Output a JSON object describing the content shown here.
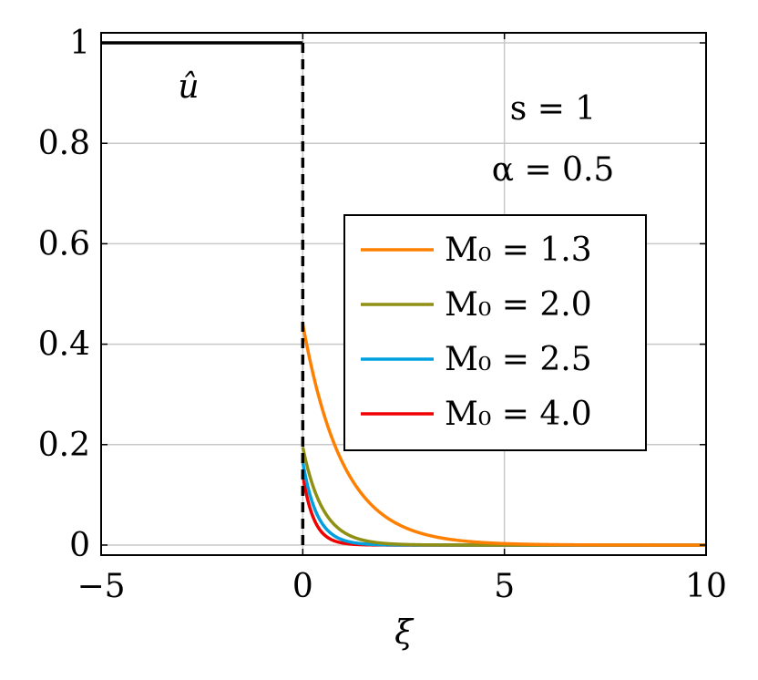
{
  "chart_data": {
    "type": "line",
    "xlabel": "ξ",
    "ylabel": "",
    "xlim": [
      -5,
      10
    ],
    "ylim": [
      -0.02,
      1.02
    ],
    "xticks": [
      -5,
      0,
      5,
      10
    ],
    "xtick_labels": [
      "−5",
      "0",
      "5",
      "10"
    ],
    "yticks": [
      0,
      0.2,
      0.4,
      0.6,
      0.8,
      1
    ],
    "ytick_labels": [
      "0",
      "0.2",
      "0.4",
      "0.6",
      "0.8",
      "1"
    ],
    "grid": true,
    "legend_position": "right",
    "annotations": {
      "u_hat": "û",
      "s": "s = 1",
      "alpha": "α = 0.5"
    },
    "reference": {
      "color": "#000000",
      "x": [
        -5,
        0,
        0
      ],
      "y": [
        1,
        1,
        0
      ]
    },
    "series": [
      {
        "name": "M₀ = 1.3",
        "color": "#ff8000",
        "start": 0.44,
        "decay": 1.0
      },
      {
        "name": "M₀ = 2.0",
        "color": "#8f8f14",
        "start": 0.195,
        "decay": 2.0
      },
      {
        "name": "M₀ = 2.5",
        "color": "#00a0e0",
        "start": 0.165,
        "decay": 2.8
      },
      {
        "name": "M₀ = 4.0",
        "color": "#f00000",
        "start": 0.14,
        "decay": 3.6
      }
    ]
  }
}
